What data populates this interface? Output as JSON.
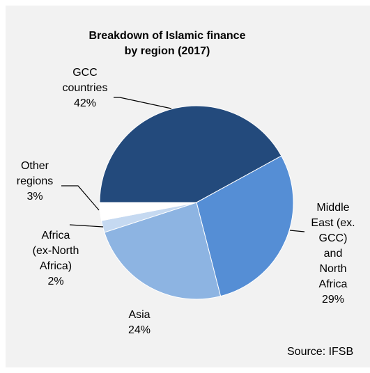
{
  "chart_data": {
    "type": "pie",
    "title": "Breakdown of Islamic finance\nby region (2017)",
    "categories": [
      "GCC\ncountries",
      "Middle\nEast (ex.\nGCC)\nand\nNorth\nAfrica",
      "Asia",
      "Africa\n(ex-North\nAfrica)",
      "Other\nregions"
    ],
    "values": [
      42,
      29,
      24,
      2,
      3
    ],
    "value_labels": [
      "42%",
      "29%",
      "24%",
      "2%",
      "3%"
    ],
    "colors": [
      "#234a7c",
      "#558ed5",
      "#8db4e2",
      "#c5d9f1",
      "#ffffff"
    ],
    "source": "Source: IFSB"
  }
}
